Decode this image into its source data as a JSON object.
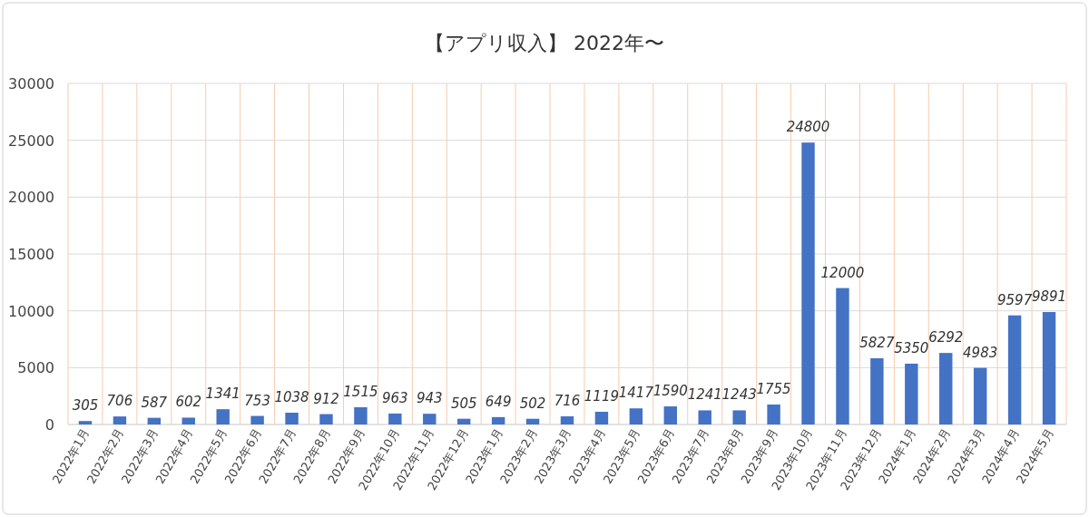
{
  "chart_data": {
    "type": "bar",
    "title": "【アプリ収入】 2022年〜",
    "categories": [
      "2022年1月",
      "2022年2月",
      "2022年3月",
      "2022年4月",
      "2022年5月",
      "2022年6月",
      "2022年7月",
      "2022年8月",
      "2022年9月",
      "2022年10月",
      "2022年11月",
      "2022年12月",
      "2023年1月",
      "2023年2月",
      "2023年3月",
      "2023年4月",
      "2023年5月",
      "2023年6月",
      "2023年7月",
      "2023年8月",
      "2023年9月",
      "2023年10月",
      "2023年11月",
      "2023年12月",
      "2024年1月",
      "2024年2月",
      "2024年3月",
      "2024年4月",
      "2024年5月"
    ],
    "values": [
      305,
      706,
      587,
      602,
      1341,
      753,
      1038,
      912,
      1515,
      963,
      943,
      505,
      649,
      502,
      716,
      1119,
      1417,
      1590,
      1241,
      1243,
      1755,
      24800,
      12000,
      5827,
      5350,
      6292,
      4983,
      9597,
      9891
    ],
    "color": "#4472c4",
    "ylim": [
      0,
      30000
    ],
    "yticks": [
      0,
      5000,
      10000,
      15000,
      20000,
      25000,
      30000
    ],
    "grid": true,
    "data_labels": true
  }
}
